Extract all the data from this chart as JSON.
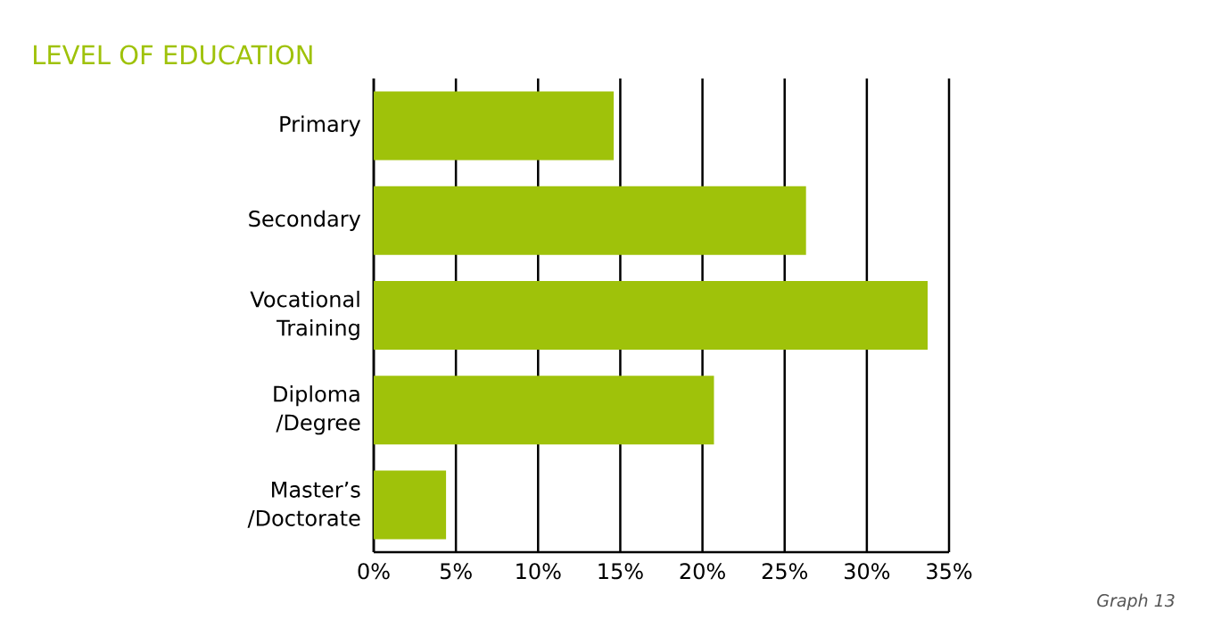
{
  "chart_data": {
    "type": "bar",
    "orientation": "horizontal",
    "title": "LEVEL OF EDUCATION",
    "categories": [
      "Primary",
      "Secondary",
      "Vocational Training",
      "Diploma /Degree",
      "Master’s /Doctorate"
    ],
    "values": [
      14.6,
      26.3,
      33.7,
      20.7,
      4.4
    ],
    "color": "#9fc20a",
    "xlim": [
      0,
      35
    ],
    "xticks": [
      {
        "value": 0,
        "label": "0%"
      },
      {
        "value": 5,
        "label": "5%"
      },
      {
        "value": 10,
        "label": "10%"
      },
      {
        "value": 15,
        "label": "15%"
      },
      {
        "value": 20,
        "label": "20%"
      },
      {
        "value": 25,
        "label": "25%"
      },
      {
        "value": 30,
        "label": "30%"
      },
      {
        "value": 35,
        "label": "35%"
      }
    ],
    "grid": "x",
    "annotations": [
      "Graph 13"
    ]
  }
}
